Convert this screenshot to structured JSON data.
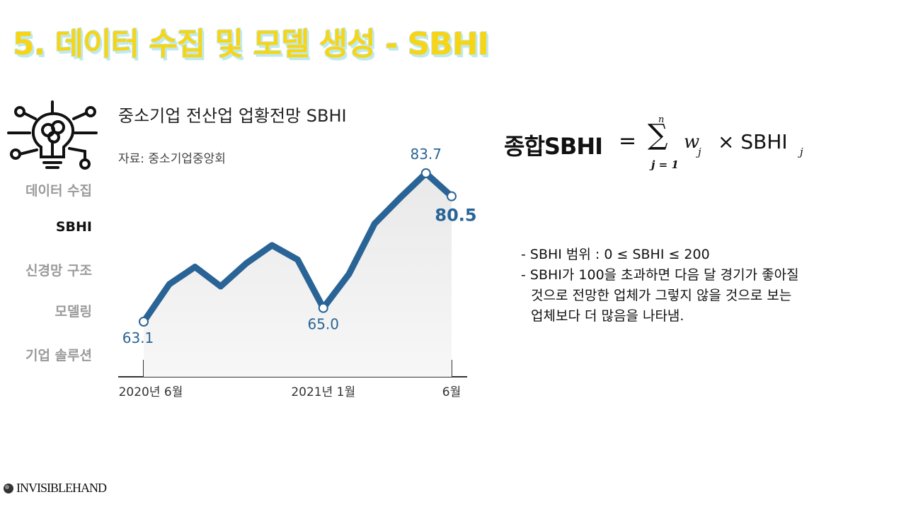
{
  "header": {
    "title": "5. 데이터 수집 및 모델 생성 - SBHI"
  },
  "sidebar": {
    "items": [
      "데이터 수집",
      "SBHI",
      "신경망 구조",
      "모델링",
      "기업 솔루션"
    ],
    "active": 1
  },
  "chart_data": {
    "type": "line",
    "title": "중소기업 전산업 업황전망 SBHI",
    "subtitle": "자료: 중소기업중앙회",
    "categories": [
      "2020년 6월",
      null,
      null,
      null,
      null,
      null,
      null,
      "2021년 1월",
      null,
      null,
      null,
      null,
      "6월"
    ],
    "series": [
      {
        "color": "#2a6496",
        "values": [
          63.1,
          68.3,
          70.7,
          68.0,
          71.2,
          73.7,
          71.7,
          65.0,
          69.7,
          76.7,
          80.3,
          83.7,
          80.5
        ],
        "value_labels": [
          "63.1",
          null,
          null,
          null,
          null,
          null,
          null,
          "65.0",
          null,
          null,
          null,
          "83.7",
          "80.5"
        ]
      }
    ]
  },
  "formula": {
    "lhs": "종합SBHI",
    "eq": "=",
    "sum_top": "n",
    "sum_bottom": "j = 1",
    "w": "w",
    "w_sub": "j",
    "times": "× SBHI",
    "sbhi_sub": "j"
  },
  "notes": {
    "lines": [
      "- SBHI 범위 : 0 ≤ SBHI ≤ 200",
      "- SBHI가 100을 초과하면 다음 달 경기가 좋아질",
      "것으로 전망한 업체가 그렇지 않을 것으로 보는",
      "업체보다 더 많음을 나타냄."
    ]
  },
  "logo": {
    "text": "INVISIBLEHAND"
  }
}
